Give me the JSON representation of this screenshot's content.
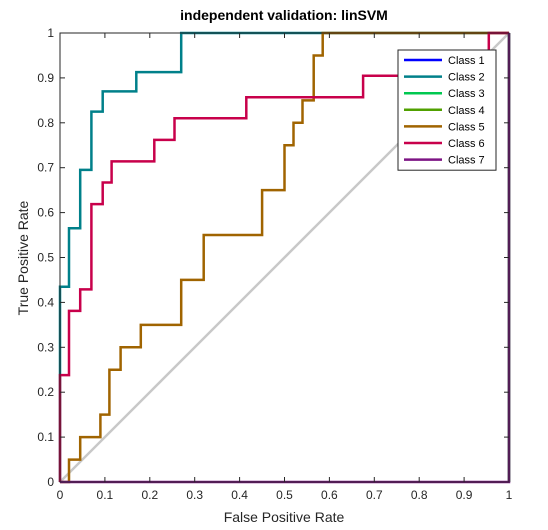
{
  "chart_data": {
    "type": "line",
    "title": "independent validation: linSVM",
    "xlabel": "False Positive Rate",
    "ylabel": "True Positive Rate",
    "xlim": [
      0,
      1
    ],
    "ylim": [
      0,
      1
    ],
    "xticks": [
      "0",
      "0.1",
      "0.2",
      "0.3",
      "0.4",
      "0.5",
      "0.6",
      "0.7",
      "0.8",
      "0.9",
      "1"
    ],
    "yticks": [
      "0",
      "0.1",
      "0.2",
      "0.3",
      "0.4",
      "0.5",
      "0.6",
      "0.7",
      "0.8",
      "0.9",
      "1"
    ],
    "grid": false,
    "legend_position": "top-right",
    "diagonal_color": "#c8c8c8",
    "series": [
      {
        "name": "Class 1",
        "color": "#0000ff",
        "x": [
          1,
          1
        ],
        "y": [
          0,
          1
        ]
      },
      {
        "name": "Class 2",
        "color": "#00808a",
        "x": [
          0,
          0,
          0.02,
          0.02,
          0.045,
          0.045,
          0.07,
          0.07,
          0.095,
          0.095,
          0.17,
          0.17,
          0.27,
          0.27,
          1
        ],
        "y": [
          0,
          0.435,
          0.435,
          0.565,
          0.565,
          0.695,
          0.695,
          0.825,
          0.825,
          0.87,
          0.87,
          0.913,
          0.913,
          1,
          1
        ]
      },
      {
        "name": "Class 3",
        "color": "#00c850",
        "x": [
          1,
          1
        ],
        "y": [
          0,
          1
        ]
      },
      {
        "name": "Class 4",
        "color": "#50a000",
        "x": [
          1,
          1
        ],
        "y": [
          0,
          1
        ]
      },
      {
        "name": "Class 5",
        "color": "#a06400",
        "x": [
          0,
          0.02,
          0.02,
          0.045,
          0.045,
          0.09,
          0.09,
          0.11,
          0.11,
          0.135,
          0.135,
          0.18,
          0.18,
          0.27,
          0.27,
          0.32,
          0.32,
          0.45,
          0.45,
          0.5,
          0.5,
          0.52,
          0.52,
          0.54,
          0.54,
          0.565,
          0.565,
          0.585,
          0.585,
          1
        ],
        "y": [
          0,
          0,
          0.05,
          0.05,
          0.1,
          0.1,
          0.15,
          0.15,
          0.25,
          0.25,
          0.3,
          0.3,
          0.35,
          0.35,
          0.45,
          0.45,
          0.55,
          0.55,
          0.65,
          0.65,
          0.75,
          0.75,
          0.8,
          0.8,
          0.85,
          0.85,
          0.95,
          0.95,
          1,
          1
        ]
      },
      {
        "name": "Class 6",
        "color": "#c8004b",
        "x": [
          0,
          0,
          0.02,
          0.02,
          0.045,
          0.045,
          0.07,
          0.07,
          0.095,
          0.095,
          0.115,
          0.115,
          0.21,
          0.21,
          0.255,
          0.255,
          0.415,
          0.415,
          0.675,
          0.675,
          0.955,
          0.955,
          1
        ],
        "y": [
          0,
          0.238,
          0.238,
          0.381,
          0.381,
          0.429,
          0.429,
          0.619,
          0.619,
          0.667,
          0.667,
          0.714,
          0.714,
          0.762,
          0.762,
          0.81,
          0.81,
          0.857,
          0.857,
          0.905,
          0.905,
          1,
          1
        ]
      },
      {
        "name": "Class 7",
        "color": "#7d1484",
        "x": [
          0,
          1,
          1
        ],
        "y": [
          0,
          0,
          1
        ]
      }
    ]
  }
}
